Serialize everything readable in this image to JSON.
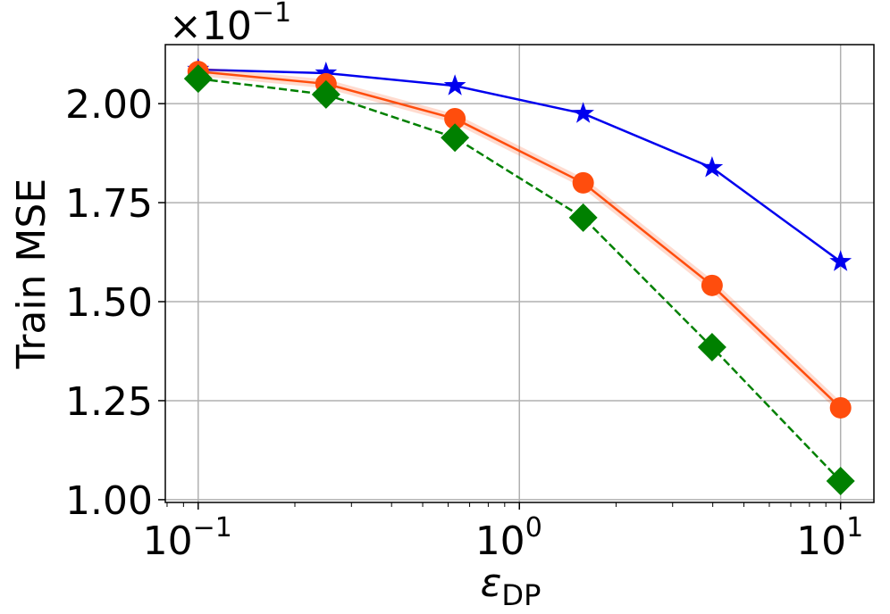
{
  "chart_data": {
    "type": "line",
    "ylabel": "Train MSE",
    "xlabel": {
      "symbol": "ε",
      "subscript": "DP"
    },
    "offset_text": {
      "base": "×10",
      "exponent": "−1"
    },
    "x": [
      0.1,
      0.25,
      0.63,
      1.58,
      3.98,
      10
    ],
    "series": [
      {
        "color": "#0000ee",
        "marker": "star",
        "dash": false,
        "values": [
          2.086,
          2.077,
          2.045,
          1.975,
          1.838,
          1.601
        ]
      },
      {
        "color": "#ff4d0d",
        "marker": "circle",
        "dash": false,
        "band": true,
        "values": [
          2.081,
          2.05,
          1.962,
          1.8,
          1.541,
          1.232
        ]
      },
      {
        "color": "#008000",
        "marker": "diamond",
        "dash": true,
        "values": [
          2.063,
          2.023,
          1.914,
          1.712,
          1.385,
          1.047
        ]
      }
    ],
    "xscale": "log",
    "xlim": [
      0.079,
      12.7
    ],
    "ylim": [
      0.993,
      2.149
    ],
    "xticks": [
      {
        "value": 0.1,
        "label": "10",
        "exponent": "−1"
      },
      {
        "value": 1,
        "label": "10",
        "exponent": "0"
      },
      {
        "value": 10,
        "label": "10",
        "exponent": "1"
      }
    ],
    "yticks": [
      {
        "value": 1,
        "label": "1.00"
      },
      {
        "value": 1.25,
        "label": "1.25"
      },
      {
        "value": 1.5,
        "label": "1.50"
      },
      {
        "value": 1.75,
        "label": "1.75"
      },
      {
        "value": 2,
        "label": "2.00"
      }
    ],
    "grid": true
  }
}
